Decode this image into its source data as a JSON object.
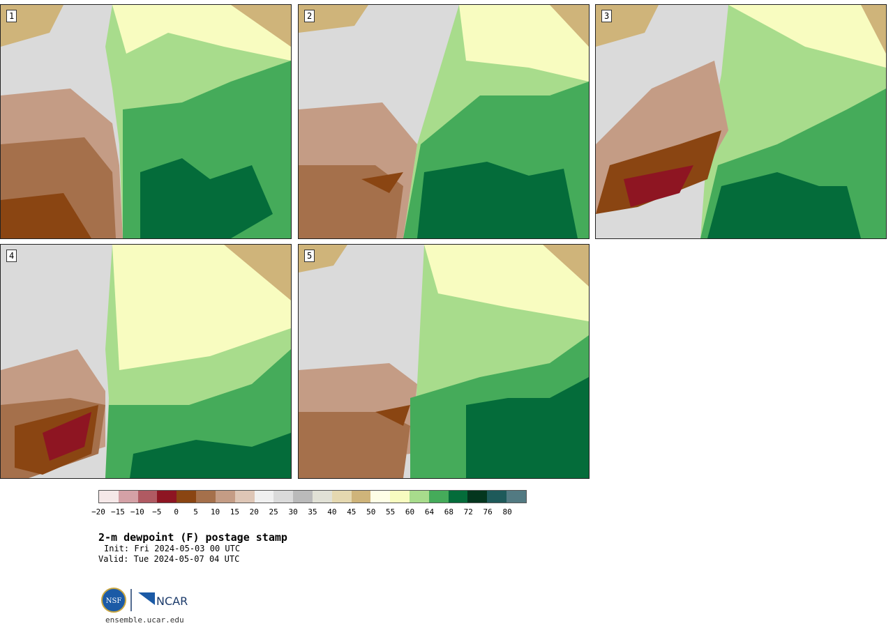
{
  "panels": [
    {
      "label": "1"
    },
    {
      "label": "2"
    },
    {
      "label": "3"
    },
    {
      "label": "4"
    },
    {
      "label": "5"
    }
  ],
  "colorbar": {
    "colors": [
      "#f5e8e8",
      "#d4a1a6",
      "#b05a62",
      "#8e1522",
      "#8a4512",
      "#a5704b",
      "#c49c85",
      "#dec6b6",
      "#f0f0f0",
      "#dadada",
      "#bababa",
      "#e1e1d6",
      "#e5d8b0",
      "#cfb47a",
      "#fefee6",
      "#f8fcc0",
      "#a8dc8c",
      "#45ab5a",
      "#046c3a",
      "#04361e",
      "#1e5a5a",
      "#527a82"
    ],
    "ticks": [
      "−20",
      "−15",
      "−10",
      "−5",
      "0",
      "5",
      "10",
      "15",
      "20",
      "25",
      "30",
      "35",
      "40",
      "45",
      "50",
      "55",
      "60",
      "64",
      "68",
      "72",
      "76",
      "80"
    ]
  },
  "title": "2-m dewpoint (F) postage stamp",
  "init": "Init: Fri 2024-05-03 00 UTC",
  "valid": "Valid: Tue 2024-05-07 04 UTC",
  "logo": {
    "left": "NSF",
    "right": "NCAR"
  },
  "url": "ensemble.ucar.edu"
}
